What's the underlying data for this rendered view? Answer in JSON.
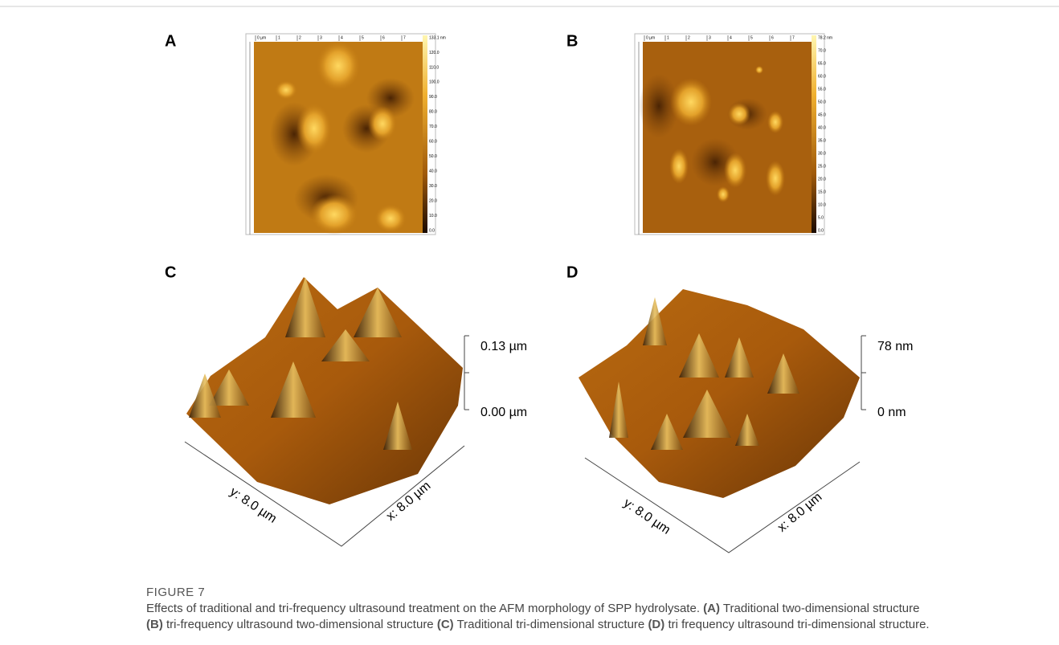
{
  "figure": {
    "label": "FIGURE 7",
    "caption": {
      "intro": "Effects of traditional and tri-frequency ultrasound treatment on the AFM morphology of SPP hydrolysate.",
      "parts": [
        {
          "label": "(A)",
          "text": "Traditional two-dimensional structure"
        },
        {
          "label": "(B)",
          "text": "tri-frequency ultrasound two-dimensional structure"
        },
        {
          "label": "(C)",
          "text": "Traditional tri-dimensional structure"
        },
        {
          "label": "(D)",
          "text": "tri frequency ultrasound tri-dimensional structure."
        }
      ]
    }
  },
  "panels": [
    {
      "label": "A",
      "ruler": [
        "0 µm",
        "1",
        "2",
        "3",
        "4",
        "5",
        "6",
        "7"
      ],
      "colorbar": [
        "133.1 nm",
        "120.0",
        "110.0",
        "100.0",
        "90.0",
        "80.0",
        "70.0",
        "60.0",
        "50.0",
        "40.0",
        "30.0",
        "20.0",
        "10.0",
        "0.0"
      ]
    },
    {
      "label": "B",
      "ruler": [
        "0 µm",
        "1",
        "2",
        "3",
        "4",
        "5",
        "6",
        "7"
      ],
      "colorbar": [
        "78.2 nm",
        "70.0",
        "65.0",
        "60.0",
        "55.0",
        "50.0",
        "45.0",
        "40.0",
        "35.0",
        "30.0",
        "25.0",
        "20.0",
        "15.0",
        "10.0",
        "5.0",
        "0.0"
      ]
    },
    {
      "label": "C",
      "z_top": "0.13 µm",
      "z_bottom": "0.00 µm",
      "y_axis": "y: 8.0 µm",
      "x_axis": "x: 8.0 µm"
    },
    {
      "label": "D",
      "z_top": "78 nm",
      "z_bottom": "0 nm",
      "y_axis": "y: 8.0 µm",
      "x_axis": "x: 8.0 µm"
    }
  ]
}
